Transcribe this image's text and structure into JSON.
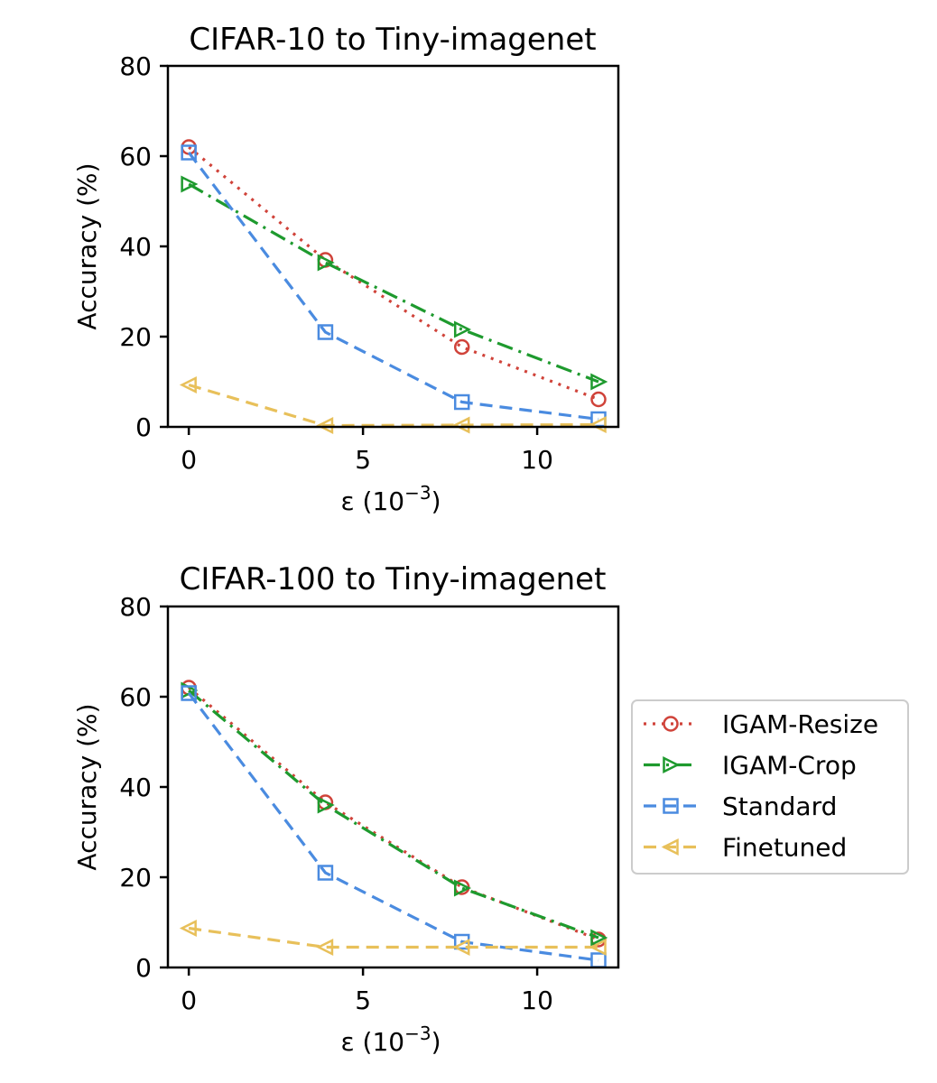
{
  "chart_data": [
    {
      "type": "line",
      "title": "CIFAR-10 to Tiny-imagenet",
      "xlabel": "ε (10⁻³)",
      "xlabel_base": "ε (10",
      "xlabel_exp": "−3",
      "xlabel_close": ")",
      "ylabel": "Accuracy (%)",
      "xlim": [
        -0.6,
        12.33
      ],
      "ylim": [
        0,
        80
      ],
      "xticks": [
        0,
        5,
        10
      ],
      "yticks": [
        0,
        20,
        40,
        60,
        80
      ],
      "grid": false,
      "x": [
        0,
        3.92,
        7.84,
        11.76
      ],
      "series": [
        {
          "name": "IGAM-Resize",
          "color": "#d0433a",
          "linestyle": "dotted",
          "marker": "circle",
          "values": [
            62.0,
            37.0,
            17.7,
            6.1
          ]
        },
        {
          "name": "IGAM-Crop",
          "color": "#1e9a2e",
          "linestyle": "dashdot",
          "marker": "triangle-right",
          "values": [
            53.8,
            36.4,
            21.6,
            10.0
          ]
        },
        {
          "name": "Standard",
          "color": "#4a8be0",
          "linestyle": "dashed",
          "marker": "square",
          "values": [
            60.8,
            21.0,
            5.5,
            1.7
          ]
        },
        {
          "name": "Finetuned",
          "color": "#e8c05a",
          "linestyle": "dashed",
          "marker": "triangle-left",
          "values": [
            9.3,
            0.3,
            0.4,
            0.5
          ]
        }
      ]
    },
    {
      "type": "line",
      "title": "CIFAR-100 to Tiny-imagenet",
      "xlabel": "ε (10⁻³)",
      "xlabel_base": "ε (10",
      "xlabel_exp": "−3",
      "xlabel_close": ")",
      "ylabel": "Accuracy (%)",
      "xlim": [
        -0.6,
        12.33
      ],
      "ylim": [
        0,
        80
      ],
      "xticks": [
        0,
        5,
        10
      ],
      "yticks": [
        0,
        20,
        40,
        60,
        80
      ],
      "grid": false,
      "x": [
        0,
        3.92,
        7.84,
        11.76
      ],
      "legend": "center-right",
      "series": [
        {
          "name": "IGAM-Resize",
          "color": "#d0433a",
          "linestyle": "dotted",
          "marker": "circle",
          "values": [
            62.0,
            36.6,
            17.8,
            6.2
          ]
        },
        {
          "name": "IGAM-Crop",
          "color": "#1e9a2e",
          "linestyle": "dashdot",
          "marker": "triangle-right",
          "values": [
            61.4,
            36.0,
            17.6,
            6.6
          ]
        },
        {
          "name": "Standard",
          "color": "#4a8be0",
          "linestyle": "dashed",
          "marker": "square",
          "values": [
            60.8,
            21.0,
            5.7,
            1.6
          ]
        },
        {
          "name": "Finetuned",
          "color": "#e8c05a",
          "linestyle": "dashed",
          "marker": "triangle-left",
          "values": [
            8.7,
            4.5,
            4.5,
            4.5
          ]
        }
      ]
    }
  ],
  "legend": {
    "entries": [
      "IGAM-Resize",
      "IGAM-Crop",
      "Standard",
      "Finetuned"
    ]
  }
}
